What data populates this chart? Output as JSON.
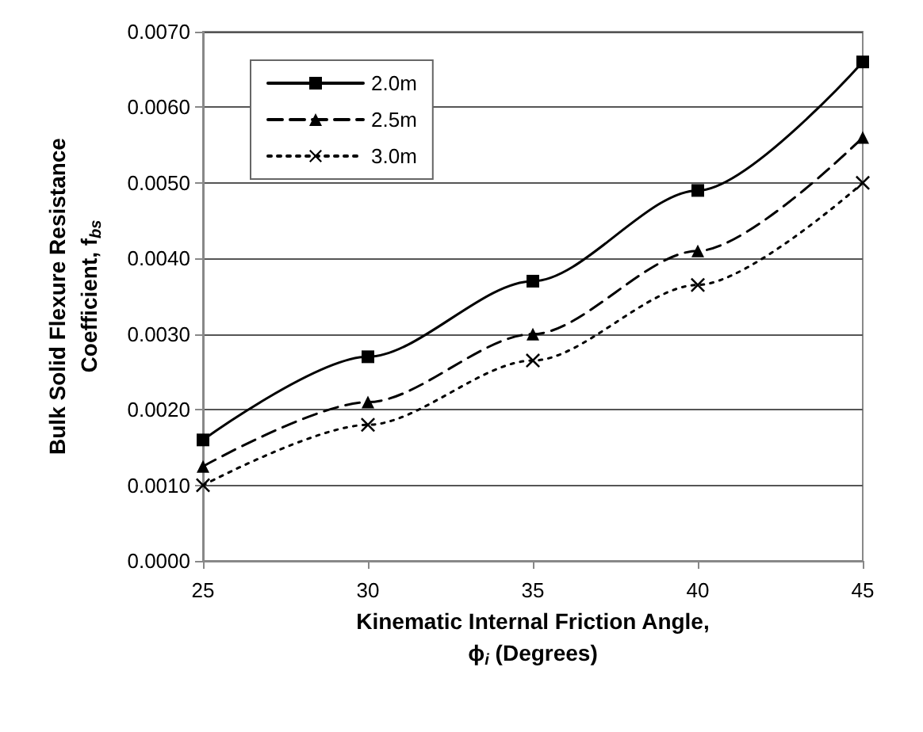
{
  "chart_data": {
    "type": "line",
    "xlabel": "Kinematic Internal Friction Angle,\nϕ$_{i}$ (Degrees)",
    "ylabel": "Bulk Solid Flexure Resistance\nCoefficient, f$_{bs}$",
    "x": [
      25,
      30,
      35,
      40,
      45
    ],
    "series": [
      {
        "name": "2.0m",
        "color": "#000000",
        "marker": "square",
        "line_style": "solid",
        "values": [
          0.0016,
          0.0027,
          0.0037,
          0.0049,
          0.0066
        ]
      },
      {
        "name": "2.5m",
        "color": "#000000",
        "marker": "triangle",
        "line_style": "dashed",
        "values": [
          0.00125,
          0.0021,
          0.003,
          0.0041,
          0.0056
        ]
      },
      {
        "name": "3.0m",
        "color": "#000000",
        "marker": "cross",
        "line_style": "dotted",
        "values": [
          0.001,
          0.0018,
          0.00265,
          0.00365,
          0.005
        ]
      }
    ],
    "xlim": [
      25,
      45
    ],
    "xticks": [
      25,
      30,
      35,
      40,
      45
    ],
    "ylim": [
      0,
      0.007
    ],
    "yticks": [
      {
        "value": 0,
        "label": "0.0000"
      },
      {
        "value": 0.001,
        "label": "0.0010"
      },
      {
        "value": 0.002,
        "label": "0.0020"
      },
      {
        "value": 0.003,
        "label": "0.0030"
      },
      {
        "value": 0.004,
        "label": "0.0040"
      },
      {
        "value": 0.005,
        "label": "0.0050"
      },
      {
        "value": 0.006,
        "label": "0.0060"
      },
      {
        "value": 0.007,
        "label": "0.0070"
      }
    ],
    "grid": "y",
    "legend": "top left"
  }
}
